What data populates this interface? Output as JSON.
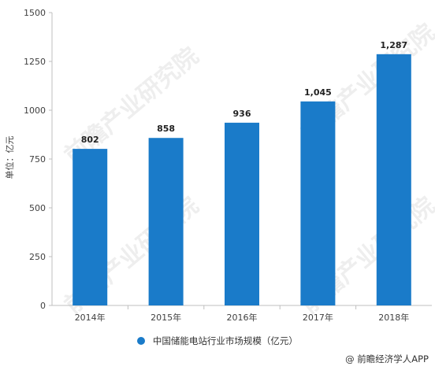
{
  "chart_data": {
    "type": "bar",
    "categories": [
      "2014年",
      "2015年",
      "2016年",
      "2017年",
      "2018年"
    ],
    "series": [
      {
        "name": "中国储能电站行业市场规模（亿元）",
        "values": [
          802,
          858,
          936,
          1045,
          1287
        ],
        "data_labels": [
          "802",
          "858",
          "936",
          "1,045",
          "1,287"
        ]
      }
    ],
    "yticks": [
      "0",
      "250",
      "500",
      "750",
      "1000",
      "1250",
      "1500"
    ],
    "ylim": [
      0,
      1500
    ],
    "ylabel": "单位：亿元",
    "xlabel": "",
    "legend_position": "bottom",
    "grid": false,
    "bar_color": "#1a7bc9"
  },
  "legend": {
    "label": "中国储能电站行业市场规模（亿元）"
  },
  "source": "@ 前瞻经济学人APP",
  "watermark": "前瞻产业研究院"
}
